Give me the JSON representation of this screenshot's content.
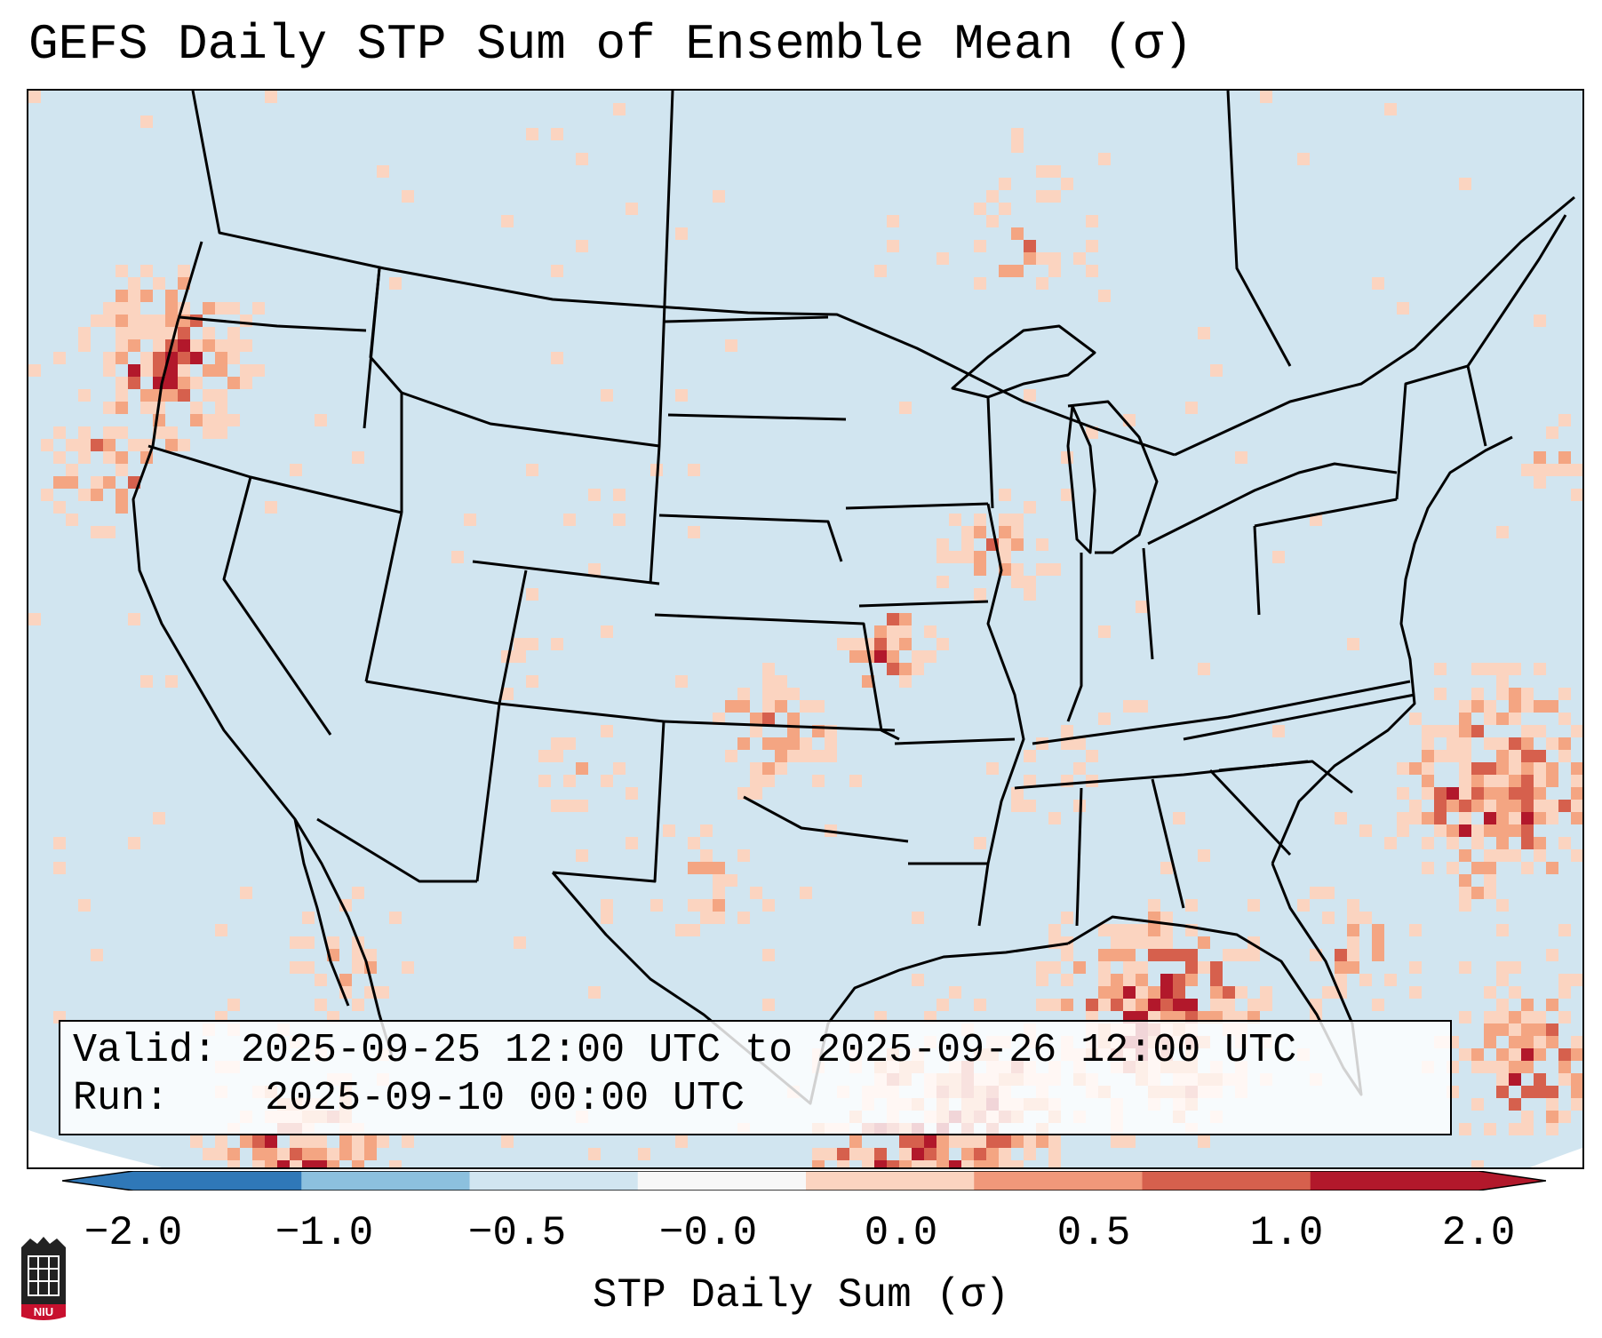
{
  "title": "GEFS Daily STP Sum of Ensemble Mean (σ)",
  "info": {
    "valid_label": "Valid:",
    "valid_value": "2025-09-25 12:00 UTC to 2025-09-26 12:00 UTC",
    "run_label": "Run:",
    "run_value": "2025-09-10 00:00 UTC"
  },
  "colorbar": {
    "label": "STP Daily Sum (σ)",
    "ticks": [
      "−2.0",
      "−1.0",
      "−0.5",
      "−0.0",
      "0.0",
      "0.5",
      "1.0",
      "2.0"
    ],
    "colors": [
      "#2f78b8",
      "#8cc0de",
      "#d1e5f0",
      "#f7f7f7",
      "#fbd4c0",
      "#f0987a",
      "#d6604d",
      "#b2182b"
    ],
    "extend": "both"
  },
  "map": {
    "background_color": "#d1e5f0",
    "outside_color": "#ffffff",
    "category_colors": [
      "#fbd4c0",
      "#f4a582",
      "#d6604d",
      "#b2182b"
    ]
  },
  "logo": {
    "text": "NIU",
    "color": "#c8102e"
  }
}
